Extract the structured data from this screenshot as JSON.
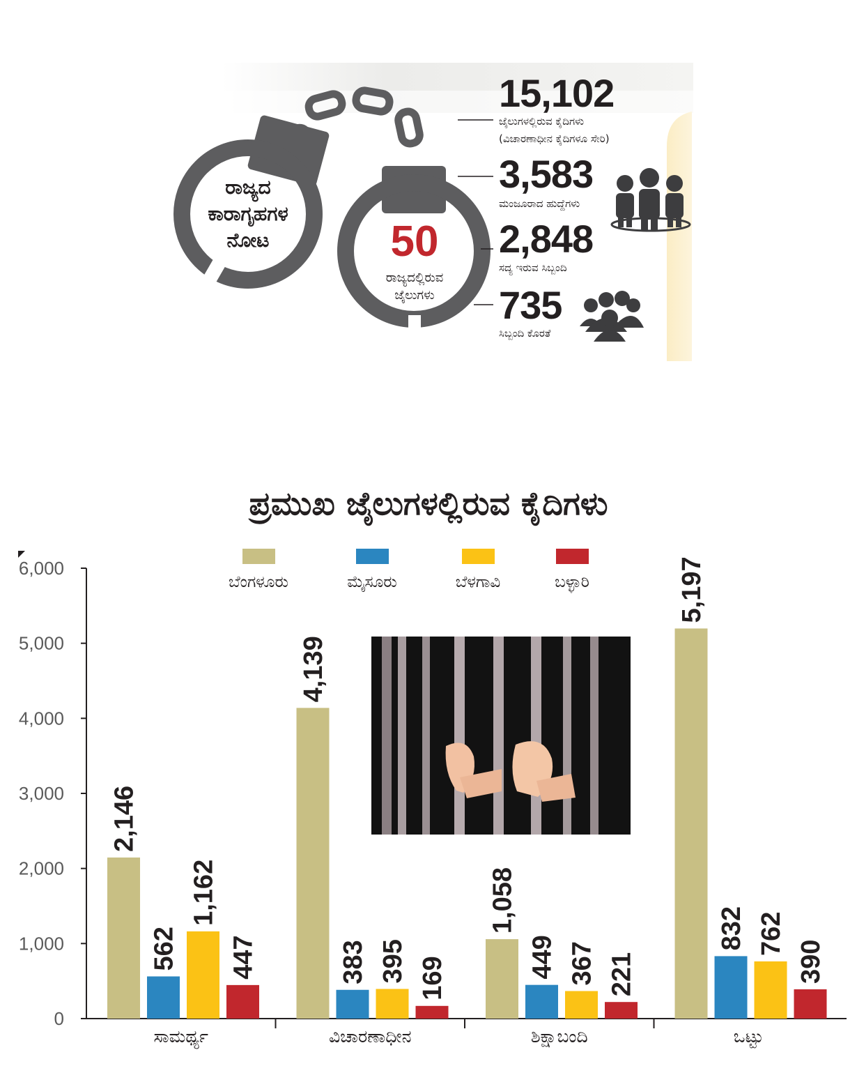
{
  "infographic": {
    "cuff_left_label": [
      "ರಾಜ್ಯದ",
      "ಕಾರಾಗೃಹಗಳ",
      "ನೋಟ"
    ],
    "jail_count": "50",
    "jail_count_label": [
      "ರಾಜ್ಯದಲ್ಲಿರುವ",
      "ಜೈಲುಗಳು"
    ],
    "stats": [
      {
        "value": "15,102",
        "label": "ಜೈಲುಗಳಲ್ಲಿರುವ ಕೈದಿಗಳು",
        "sublabel": "(ವಿಚಾರಣಾಧೀನ ಕೈದಿಗಳೂ ಸೇರಿ)"
      },
      {
        "value": "3,583",
        "label": "ಮಂಜೂರಾದ ಹುದ್ದೆಗಳು"
      },
      {
        "value": "2,848",
        "label": "ಸದ್ಯ ಇರುವ ಸಿಬ್ಬಂದಿ"
      },
      {
        "value": "735",
        "label": "ಸಿಬ್ಬಂದಿ ಕೊರತೆ"
      }
    ],
    "colors": {
      "cuff": "#5d5d5f",
      "accent_number": "#c1272d"
    },
    "icons": [
      "handcuffs-icon",
      "staff-group-icon",
      "crowd-icon"
    ]
  },
  "chart_data": {
    "type": "bar",
    "title": "ಪ್ರಮುಖ ಜೈಲುಗಳಲ್ಲಿರುವ ಕೈದಿಗಳು",
    "categories": [
      "ಸಾಮರ್ಥ್ಯ",
      "ವಿಚಾರಣಾಧೀನ",
      "ಶಿಕ್ಷಾಬಂದಿ",
      "ಒಟ್ಟು"
    ],
    "series": [
      {
        "name": "ಬೆಂಗಳೂರು",
        "color": "#c8bf84",
        "values": [
          2146,
          4139,
          1058,
          5197
        ],
        "labels": [
          "2,146",
          "4,139",
          "1,058",
          "5,197"
        ]
      },
      {
        "name": "ಮೈಸೂರು",
        "color": "#2b86c0",
        "values": [
          562,
          383,
          449,
          832
        ],
        "labels": [
          "562",
          "383",
          "449",
          "832"
        ]
      },
      {
        "name": "ಬೆಳಗಾವಿ",
        "color": "#fbc215",
        "values": [
          1162,
          395,
          367,
          762
        ],
        "labels": [
          "1,162",
          "395",
          "367",
          "762"
        ]
      },
      {
        "name": "ಬಳ್ಳಾರಿ",
        "color": "#c1272d",
        "values": [
          447,
          169,
          221,
          390
        ],
        "labels": [
          "447",
          "169",
          "221",
          "390"
        ]
      }
    ],
    "ylim": [
      0,
      6000
    ],
    "yticks": [
      0,
      1000,
      2000,
      3000,
      4000,
      5000,
      6000
    ],
    "ytick_labels": [
      "0",
      "1,000",
      "2,000",
      "3,000",
      "4,000",
      "5,000",
      "6,000"
    ],
    "grid": false,
    "legend_position": "top-center"
  }
}
